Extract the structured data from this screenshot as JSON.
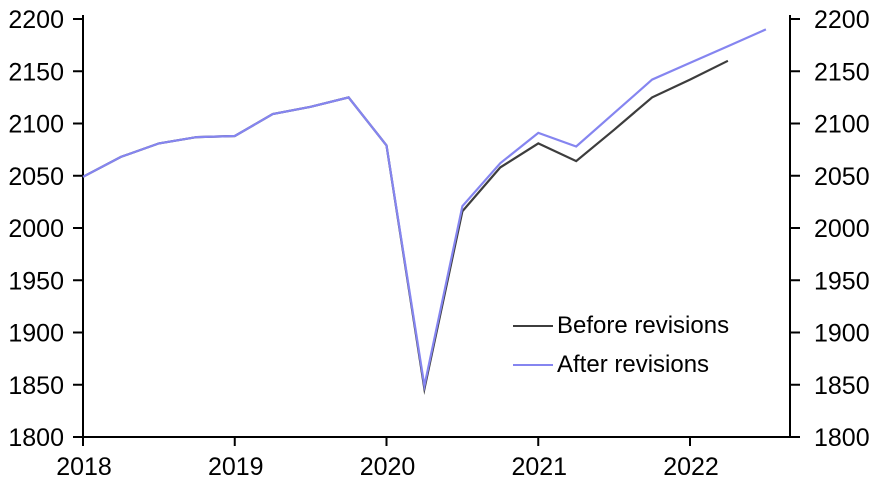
{
  "chart_data": {
    "type": "line",
    "title": "",
    "xlabel": "",
    "ylabel": "",
    "grid": false,
    "background_color": "#ffffff",
    "axis_color": "#000000",
    "text_color": "#000000",
    "ylim": [
      1800,
      2200
    ],
    "xlim": [
      2018,
      2022.66
    ],
    "y_ticks": [
      2200,
      2150,
      2100,
      2050,
      2000,
      1950,
      1900,
      1850,
      1800
    ],
    "y_axis_sides": [
      "left",
      "right"
    ],
    "x_tick_years": [
      2018,
      2019,
      2020,
      2021,
      2022
    ],
    "x_tick_labels": [
      "2018",
      "2019",
      "2020",
      "2021",
      "2022"
    ],
    "legend_position": "inside-middle-right",
    "series": [
      {
        "name": "Before revisions",
        "color": "#3d3d3d",
        "x": [
          2018.0,
          2018.25,
          2018.5,
          2018.75,
          2019.0,
          2019.25,
          2019.5,
          2019.75,
          2020.0,
          2020.25,
          2020.5,
          2020.75,
          2021.0,
          2021.25,
          2021.5,
          2021.75,
          2022.0,
          2022.25
        ],
        "values": [
          2049,
          2068,
          2081,
          2087,
          2088,
          2109,
          2116,
          2125,
          2079,
          1846,
          2016,
          2058,
          2081,
          2064,
          2094,
          2125,
          2142,
          2160
        ]
      },
      {
        "name": "After revisions",
        "color": "#8585f0",
        "x": [
          2018.0,
          2018.25,
          2018.5,
          2018.75,
          2019.0,
          2019.25,
          2019.5,
          2019.75,
          2020.0,
          2020.25,
          2020.5,
          2020.75,
          2021.0,
          2021.25,
          2021.5,
          2021.75,
          2022.0,
          2022.25,
          2022.5
        ],
        "values": [
          2049,
          2068,
          2081,
          2087,
          2088,
          2109,
          2116,
          2125,
          2079,
          1849,
          2021,
          2062,
          2091,
          2078,
          2110,
          2142,
          2158,
          2174,
          2190
        ]
      }
    ]
  }
}
